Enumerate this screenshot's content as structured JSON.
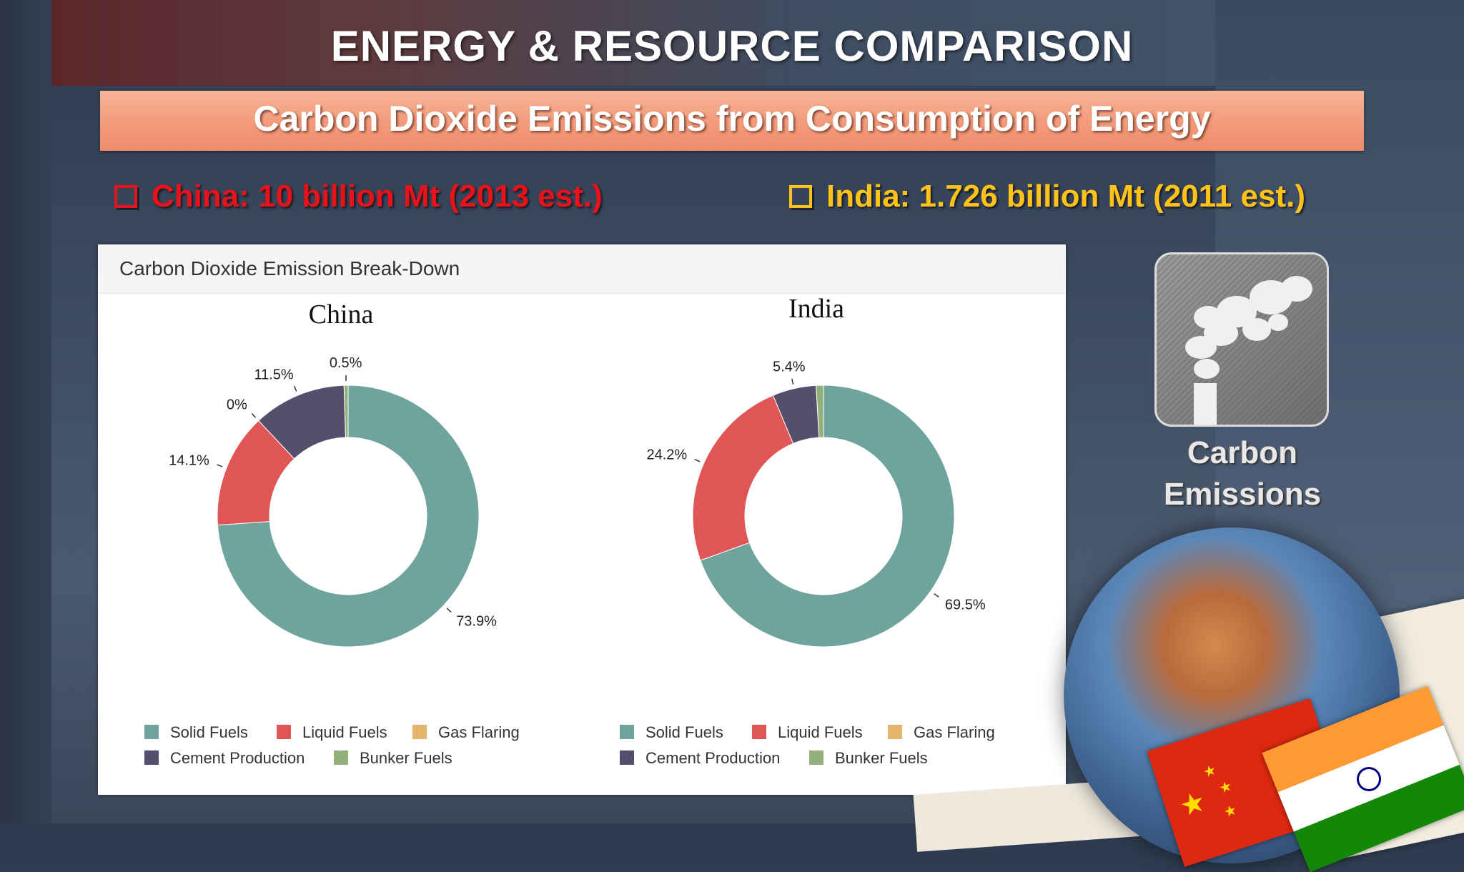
{
  "slide": {
    "title": "ENERGY & RESOURCE COMPARISON",
    "subtitle": "Carbon Dioxide Emissions from Consumption of Energy",
    "china_stat": "China: 10 billion Mt (2013 est.)",
    "india_stat": "India: 1.726 billion Mt (2011 est.)",
    "icon_label_line1": "Carbon",
    "icon_label_line2": "Emissions"
  },
  "panel": {
    "title": "Carbon Dioxide Emission Break-Down"
  },
  "colors": {
    "china_stat": "#e8131a",
    "india_stat": "#ffc21a",
    "subtitle_band": "#f39a7b"
  },
  "icons": [
    "carbon-emissions-icon",
    "globe-icon",
    "china-flag-icon",
    "india-flag-icon"
  ],
  "chart_data": [
    {
      "type": "pie",
      "subtype": "donut",
      "title": "China",
      "categories": [
        "Solid Fuels",
        "Liquid Fuels",
        "Gas Flaring",
        "Cement Production",
        "Bunker Fuels"
      ],
      "values": [
        73.9,
        14.1,
        0,
        11.5,
        0.5
      ],
      "labels": [
        "73.9%",
        "14.1%",
        "0%",
        "11.5%",
        "0.5%"
      ],
      "colors": [
        "#6fa39d",
        "#e05556",
        "#e5b56b",
        "#564e6d",
        "#93b07b"
      ],
      "legend_position": "bottom"
    },
    {
      "type": "pie",
      "subtype": "donut",
      "title": "India",
      "categories": [
        "Solid Fuels",
        "Liquid Fuels",
        "Gas Flaring",
        "Cement Production",
        "Bunker Fuels"
      ],
      "values": [
        69.5,
        24.2,
        0,
        5.4,
        0.9
      ],
      "labels": [
        "69.5%",
        "24.2%",
        "",
        "5.4%",
        ""
      ],
      "colors": [
        "#6fa39d",
        "#e05556",
        "#e5b56b",
        "#564e6d",
        "#93b07b"
      ],
      "legend_position": "bottom"
    }
  ]
}
